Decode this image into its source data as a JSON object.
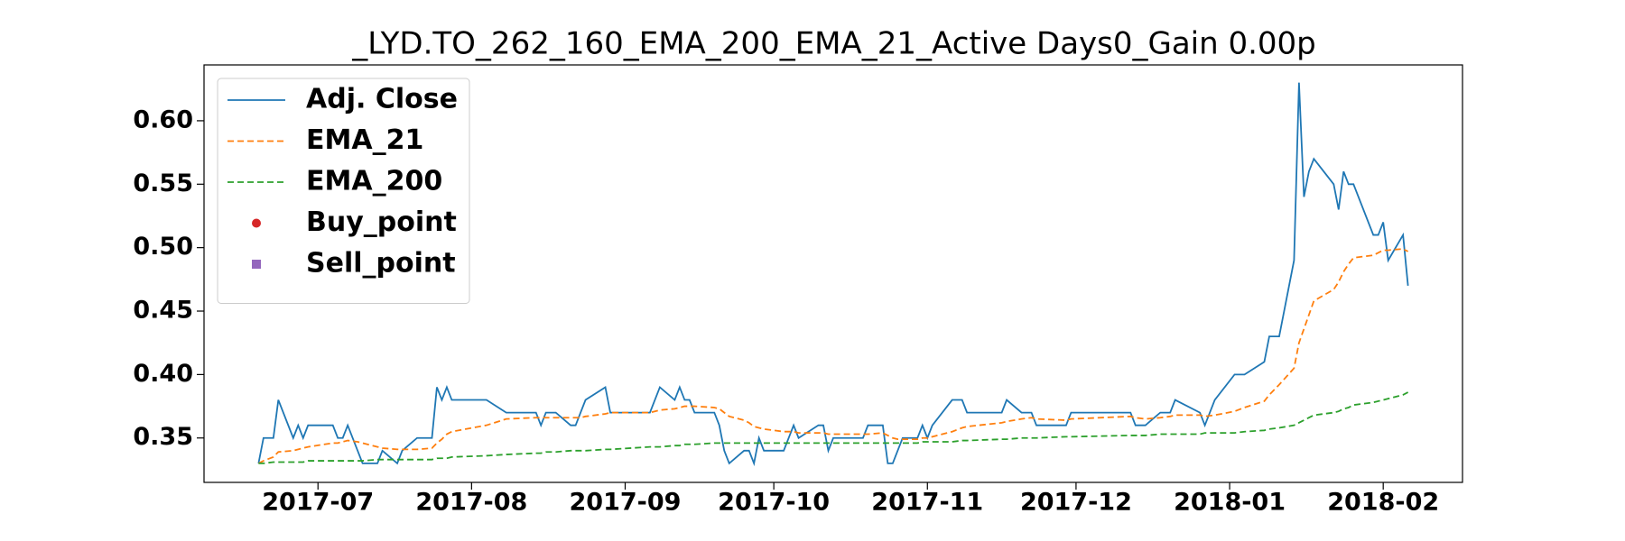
{
  "chart_data": {
    "type": "line",
    "title": "_LYD.TO_262_160_EMA_200_EMA_21_Active Days0_Gain   0.00p",
    "x": [
      "2017-06-19",
      "2017-06-20",
      "2017-06-22",
      "2017-06-23",
      "2017-06-26",
      "2017-06-27",
      "2017-06-28",
      "2017-06-29",
      "2017-07-04",
      "2017-07-05",
      "2017-07-06",
      "2017-07-07",
      "2017-07-09",
      "2017-07-10",
      "2017-07-13",
      "2017-07-14",
      "2017-07-17",
      "2017-07-18",
      "2017-07-21",
      "2017-07-24",
      "2017-07-25",
      "2017-07-26",
      "2017-07-27",
      "2017-07-28",
      "2017-08-04",
      "2017-08-08",
      "2017-08-14",
      "2017-08-15",
      "2017-08-16",
      "2017-08-18",
      "2017-08-21",
      "2017-08-22",
      "2017-08-23",
      "2017-08-24",
      "2017-08-28",
      "2017-08-29",
      "2017-09-06",
      "2017-09-08",
      "2017-09-11",
      "2017-09-12",
      "2017-09-13",
      "2017-09-14",
      "2017-09-15",
      "2017-09-19",
      "2017-09-20",
      "2017-09-21",
      "2017-09-22",
      "2017-09-25",
      "2017-09-26",
      "2017-09-27",
      "2017-09-28",
      "2017-09-29",
      "2017-10-03",
      "2017-10-05",
      "2017-10-06",
      "2017-10-10",
      "2017-10-11",
      "2017-10-12",
      "2017-10-13",
      "2017-10-19",
      "2017-10-20",
      "2017-10-23",
      "2017-10-24",
      "2017-10-25",
      "2017-10-26",
      "2017-10-27",
      "2017-10-30",
      "2017-10-31",
      "2017-11-01",
      "2017-11-02",
      "2017-11-06",
      "2017-11-08",
      "2017-11-09",
      "2017-11-16",
      "2017-11-17",
      "2017-11-20",
      "2017-11-22",
      "2017-11-23",
      "2017-11-29",
      "2017-11-30",
      "2017-12-12",
      "2017-12-13",
      "2017-12-15",
      "2017-12-18",
      "2017-12-20",
      "2017-12-21",
      "2017-12-26",
      "2017-12-27",
      "2017-12-29",
      "2018-01-02",
      "2018-01-04",
      "2018-01-08",
      "2018-01-09",
      "2018-01-11",
      "2018-01-14",
      "2018-01-15",
      "2018-01-16",
      "2018-01-17",
      "2018-01-18",
      "2018-01-22",
      "2018-01-23",
      "2018-01-24",
      "2018-01-25",
      "2018-01-26",
      "2018-01-30",
      "2018-01-31",
      "2018-02-01",
      "2018-02-02",
      "2018-02-05",
      "2018-02-06"
    ],
    "series": [
      {
        "name": "Adj. Close",
        "color": "#1f77b4",
        "linestyle": "solid",
        "values": [
          0.33,
          0.35,
          0.35,
          0.38,
          0.35,
          0.36,
          0.35,
          0.36,
          0.36,
          0.35,
          0.35,
          0.36,
          0.34,
          0.33,
          0.33,
          0.34,
          0.33,
          0.34,
          0.35,
          0.35,
          0.39,
          0.38,
          0.39,
          0.38,
          0.38,
          0.37,
          0.37,
          0.36,
          0.37,
          0.37,
          0.36,
          0.36,
          0.37,
          0.38,
          0.39,
          0.37,
          0.37,
          0.39,
          0.38,
          0.39,
          0.38,
          0.38,
          0.37,
          0.37,
          0.36,
          0.34,
          0.33,
          0.34,
          0.34,
          0.33,
          0.35,
          0.34,
          0.34,
          0.36,
          0.35,
          0.36,
          0.36,
          0.34,
          0.35,
          0.35,
          0.36,
          0.36,
          0.33,
          0.33,
          0.34,
          0.35,
          0.35,
          0.36,
          0.35,
          0.36,
          0.38,
          0.38,
          0.37,
          0.37,
          0.38,
          0.37,
          0.37,
          0.36,
          0.36,
          0.37,
          0.37,
          0.36,
          0.36,
          0.37,
          0.37,
          0.38,
          0.37,
          0.36,
          0.38,
          0.4,
          0.4,
          0.41,
          0.43,
          0.43,
          0.49,
          0.63,
          0.54,
          0.56,
          0.57,
          0.55,
          0.53,
          0.56,
          0.55,
          0.55,
          0.51,
          0.51,
          0.52,
          0.49,
          0.51,
          0.47
        ]
      },
      {
        "name": "EMA_21",
        "color": "#ff7f0e",
        "linestyle": "dashed",
        "values": [
          0.33,
          0.332,
          0.335,
          0.339,
          0.34,
          0.341,
          0.342,
          0.343,
          0.346,
          0.346,
          0.347,
          0.348,
          0.347,
          0.346,
          0.343,
          0.342,
          0.341,
          0.341,
          0.341,
          0.342,
          0.346,
          0.349,
          0.353,
          0.355,
          0.36,
          0.365,
          0.366,
          0.366,
          0.366,
          0.366,
          0.366,
          0.366,
          0.366,
          0.367,
          0.369,
          0.37,
          0.37,
          0.372,
          0.373,
          0.374,
          0.375,
          0.375,
          0.375,
          0.374,
          0.373,
          0.37,
          0.367,
          0.364,
          0.362,
          0.359,
          0.358,
          0.357,
          0.355,
          0.355,
          0.354,
          0.354,
          0.354,
          0.353,
          0.353,
          0.353,
          0.353,
          0.354,
          0.352,
          0.35,
          0.349,
          0.349,
          0.349,
          0.35,
          0.35,
          0.351,
          0.355,
          0.358,
          0.359,
          0.362,
          0.363,
          0.365,
          0.366,
          0.365,
          0.364,
          0.365,
          0.367,
          0.366,
          0.365,
          0.366,
          0.367,
          0.368,
          0.368,
          0.367,
          0.368,
          0.371,
          0.374,
          0.379,
          0.384,
          0.392,
          0.405,
          0.425,
          0.436,
          0.447,
          0.458,
          0.467,
          0.473,
          0.481,
          0.487,
          0.492,
          0.494,
          0.496,
          0.498,
          0.498,
          0.499,
          0.497
        ]
      },
      {
        "name": "EMA_200",
        "color": "#2ca02c",
        "linestyle": "dashed",
        "values": [
          0.33,
          0.33,
          0.331,
          0.331,
          0.331,
          0.331,
          0.331,
          0.332,
          0.332,
          0.332,
          0.332,
          0.332,
          0.332,
          0.332,
          0.333,
          0.333,
          0.333,
          0.333,
          0.333,
          0.333,
          0.334,
          0.334,
          0.334,
          0.335,
          0.336,
          0.337,
          0.338,
          0.338,
          0.339,
          0.339,
          0.34,
          0.34,
          0.34,
          0.34,
          0.341,
          0.341,
          0.343,
          0.343,
          0.344,
          0.344,
          0.345,
          0.345,
          0.345,
          0.346,
          0.346,
          0.346,
          0.346,
          0.346,
          0.346,
          0.346,
          0.346,
          0.346,
          0.346,
          0.346,
          0.346,
          0.346,
          0.346,
          0.346,
          0.346,
          0.346,
          0.346,
          0.346,
          0.346,
          0.346,
          0.346,
          0.346,
          0.346,
          0.347,
          0.347,
          0.347,
          0.347,
          0.348,
          0.348,
          0.349,
          0.349,
          0.35,
          0.35,
          0.35,
          0.351,
          0.351,
          0.352,
          0.352,
          0.352,
          0.353,
          0.353,
          0.353,
          0.353,
          0.354,
          0.354,
          0.354,
          0.355,
          0.356,
          0.357,
          0.358,
          0.36,
          0.362,
          0.364,
          0.366,
          0.368,
          0.37,
          0.371,
          0.373,
          0.374,
          0.376,
          0.378,
          0.379,
          0.38,
          0.381,
          0.384,
          0.386
        ]
      }
    ],
    "marker_series": [
      {
        "name": "Buy_point",
        "color": "#d62728",
        "marker": "circle"
      },
      {
        "name": "Sell_point",
        "color": "#9467bd",
        "marker": "square"
      }
    ],
    "xlim": [
      "2017-06-08",
      "2018-02-17"
    ],
    "xticks": [
      {
        "value": "2017-07-01",
        "label": "2017-07"
      },
      {
        "value": "2017-08-01",
        "label": "2017-08"
      },
      {
        "value": "2017-09-01",
        "label": "2017-09"
      },
      {
        "value": "2017-10-01",
        "label": "2017-10"
      },
      {
        "value": "2017-11-01",
        "label": "2017-11"
      },
      {
        "value": "2017-12-01",
        "label": "2017-12"
      },
      {
        "value": "2018-01-01",
        "label": "2018-01"
      },
      {
        "value": "2018-02-01",
        "label": "2018-02"
      }
    ],
    "ylim": [
      0.315,
      0.644
    ],
    "yticks": [
      {
        "value": 0.35,
        "label": "0.35"
      },
      {
        "value": 0.4,
        "label": "0.40"
      },
      {
        "value": 0.45,
        "label": "0.45"
      },
      {
        "value": 0.5,
        "label": "0.50"
      },
      {
        "value": 0.55,
        "label": "0.55"
      },
      {
        "value": 0.6,
        "label": "0.60"
      }
    ],
    "grid": false,
    "legend": "upper left"
  }
}
